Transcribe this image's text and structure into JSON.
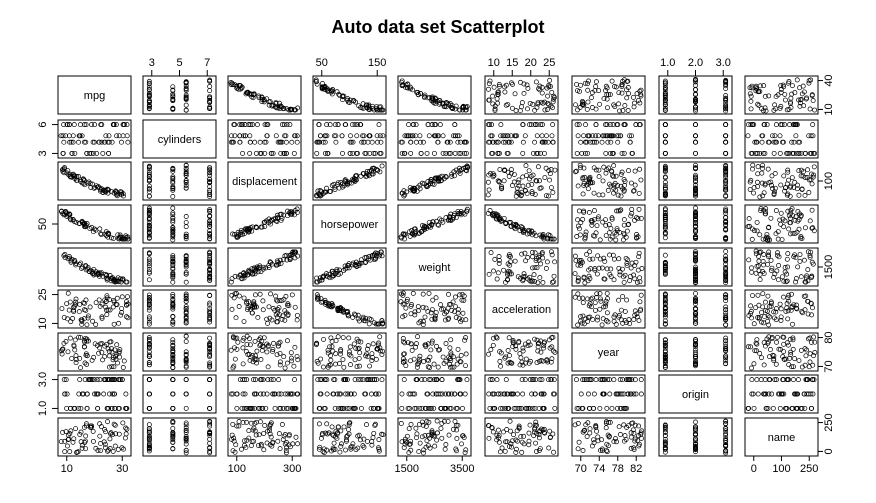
{
  "chart_data": {
    "type": "scatter",
    "title": "Auto data set Scatterplot",
    "variables": [
      "mpg",
      "cylinders",
      "displacement",
      "horsepower",
      "weight",
      "acceleration",
      "year",
      "origin",
      "name"
    ],
    "axis_ticks": {
      "top": {
        "1": [
          "3",
          "5",
          "7"
        ],
        "3": [
          "50",
          "150"
        ],
        "5": [
          "10",
          "15",
          "20",
          "25"
        ],
        "7": [
          "1.0",
          "2.0",
          "3.0"
        ]
      },
      "bottom": {
        "0": [
          "10",
          "30"
        ],
        "2": [
          "100",
          "300"
        ],
        "4": [
          "1500",
          "3500"
        ],
        "6": [
          "70",
          "74",
          "78",
          "82"
        ],
        "8": [
          "0",
          "100",
          "250"
        ]
      },
      "left": {
        "1": [
          "3",
          "6"
        ],
        "3": [
          "50"
        ],
        "5": [
          "10",
          "25"
        ],
        "7": [
          "1.0",
          "3.0"
        ]
      },
      "right": {
        "0": [
          "10",
          "40"
        ],
        "2": [
          "100"
        ],
        "4": [
          "1500"
        ],
        "6": [
          "70",
          "80"
        ],
        "8": [
          "0",
          "250"
        ]
      }
    },
    "grid": false,
    "legend": "none"
  }
}
